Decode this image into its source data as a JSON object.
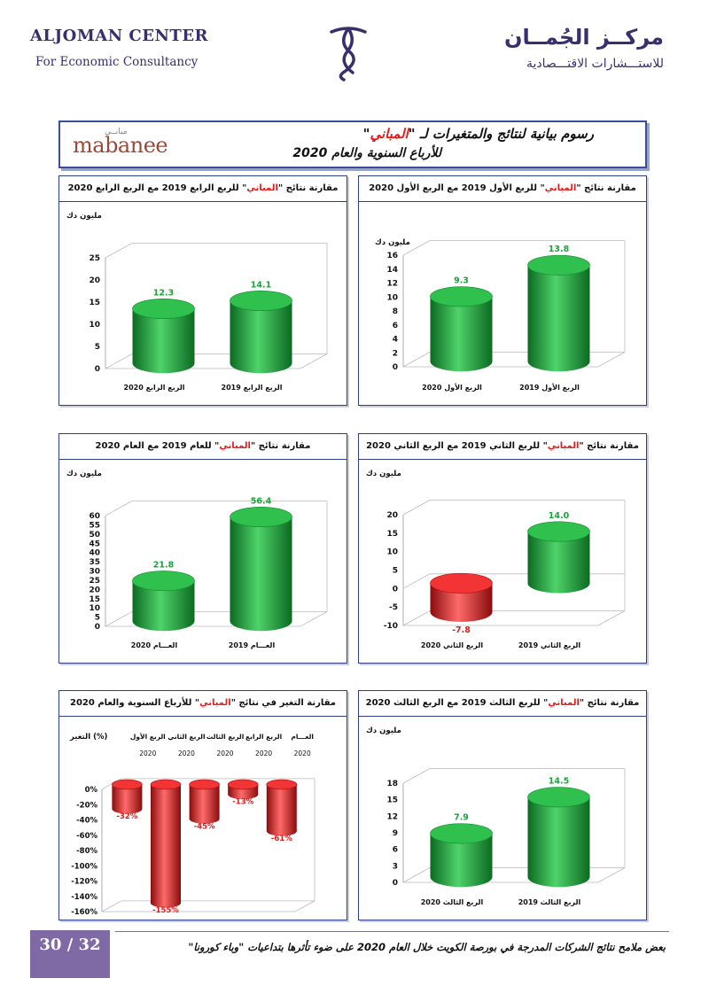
{
  "header": {
    "left_title": "ALJOMAN CENTER",
    "left_subtitle": "For Economic Consultancy",
    "right_title": "مركــز الجُمــان",
    "right_subtitle": "للاستـــشارات الاقتـــصادية"
  },
  "title_box": {
    "line1_before": "رسوم بيانية لنتائج والمتغيرات لـ \"",
    "line1_company": "المباني",
    "line1_after": "\"",
    "line2": "للأرباع السنوية والعام 2020",
    "brand_en": "mabanee",
    "brand_ar": "مبانــي"
  },
  "colors": {
    "positive": "#1aa33a",
    "negative": "#e01b1b",
    "frame": "#2d3f86"
  },
  "footer": {
    "page": "30 / 32",
    "text": "بعض ملامح نتائج الشركات المدرجة في بورصة الكويت خلال العام 2020 على ضوء تأثرها بتداعيات \"وباء كورونا\""
  },
  "chart_data": [
    {
      "id": "q1",
      "type": "bar",
      "title_pre": "مقارنة نتائج \"",
      "title_company": "المباني",
      "title_post": "\" للربع الأول 2019 مع الربع الأول 2020",
      "unit": "مليون دك",
      "categories": [
        "الربع الأول 2020",
        "الربع الأول 2019"
      ],
      "values": [
        9.3,
        13.8
      ],
      "value_labels": [
        "9.3",
        "13.8"
      ],
      "yticks": [
        "0",
        "2",
        "4",
        "6",
        "8",
        "10",
        "12",
        "14",
        "16"
      ],
      "ylim": [
        0,
        16
      ],
      "grid": false
    },
    {
      "id": "q4",
      "type": "bar",
      "title_pre": "مقارنة نتائج \"",
      "title_company": "المباني",
      "title_post": "\" للربع الرابع 2019 مع الربع الرابع 2020",
      "unit": "مليون دك",
      "categories": [
        "الربع الرابع 2020",
        "الربع الرابع 2019"
      ],
      "values": [
        12.3,
        14.1
      ],
      "value_labels": [
        "12.3",
        "14.1"
      ],
      "yticks": [
        "0",
        "5",
        "10",
        "15",
        "20",
        "25"
      ],
      "ylim": [
        0,
        25
      ],
      "grid": false
    },
    {
      "id": "q2",
      "type": "bar",
      "title_pre": "مقارنة نتائج \"",
      "title_company": "المباني",
      "title_post": "\" للربع الثاني 2019 مع الربع الثاني 2020",
      "unit": "مليون دك",
      "categories": [
        "الربع الثاني 2020",
        "الربع الثاني 2019"
      ],
      "values": [
        -7.8,
        14.0
      ],
      "value_labels": [
        "-7.8",
        "14.0"
      ],
      "yticks": [
        "-10",
        "-5",
        "0",
        "5",
        "10",
        "15",
        "20"
      ],
      "ylim": [
        -10,
        20
      ],
      "grid": false
    },
    {
      "id": "year",
      "type": "bar",
      "title_pre": "مقارنة نتائج \"",
      "title_company": "المباني",
      "title_post": "\" للعام 2019 مع العام 2020",
      "unit": "مليون دك",
      "categories": [
        "العـــام 2020",
        "العـــام 2019"
      ],
      "values": [
        21.8,
        56.4
      ],
      "value_labels": [
        "21.8",
        "56.4"
      ],
      "yticks": [
        "0",
        "5",
        "10",
        "15",
        "20",
        "25",
        "30",
        "35",
        "40",
        "45",
        "50",
        "55",
        "60"
      ],
      "ylim": [
        0,
        60
      ],
      "grid": false
    },
    {
      "id": "q3",
      "type": "bar",
      "title_pre": "مقارنة نتائج \"",
      "title_company": "المباني",
      "title_post": "\" للربع الثالث 2019 مع الربع الثالث 2020",
      "unit": "مليون دك",
      "categories": [
        "الربع الثالث 2020",
        "الربع الثالث 2019"
      ],
      "values": [
        7.9,
        14.5
      ],
      "value_labels": [
        "7.9",
        "14.5"
      ],
      "yticks": [
        "0",
        "3",
        "6",
        "9",
        "12",
        "15",
        "18"
      ],
      "ylim": [
        0,
        18
      ],
      "grid": false
    },
    {
      "id": "change",
      "type": "bar",
      "title_pre": "مقارنة التغير في نتائج \"",
      "title_company": "المباني",
      "title_post": "\" للأرباع السنوية والعام 2020",
      "unit": "التغير (%)",
      "categories": [
        "الربع الأول 2020",
        "الربع الثاني 2020",
        "الربع الثالث 2020",
        "الربع الرابع 2020",
        "العـــام 2020"
      ],
      "values": [
        -32,
        -155,
        -45,
        -13,
        -61
      ],
      "value_labels": [
        "-32%",
        "-155%",
        "-45%",
        "-13%",
        "-61%"
      ],
      "yticks": [
        "-160%",
        "-140%",
        "-120%",
        "-100%",
        "-80%",
        "-60%",
        "-40%",
        "-20%",
        "0%"
      ],
      "ylim": [
        -160,
        0
      ],
      "grid": false,
      "category_labels_position": "top"
    }
  ]
}
